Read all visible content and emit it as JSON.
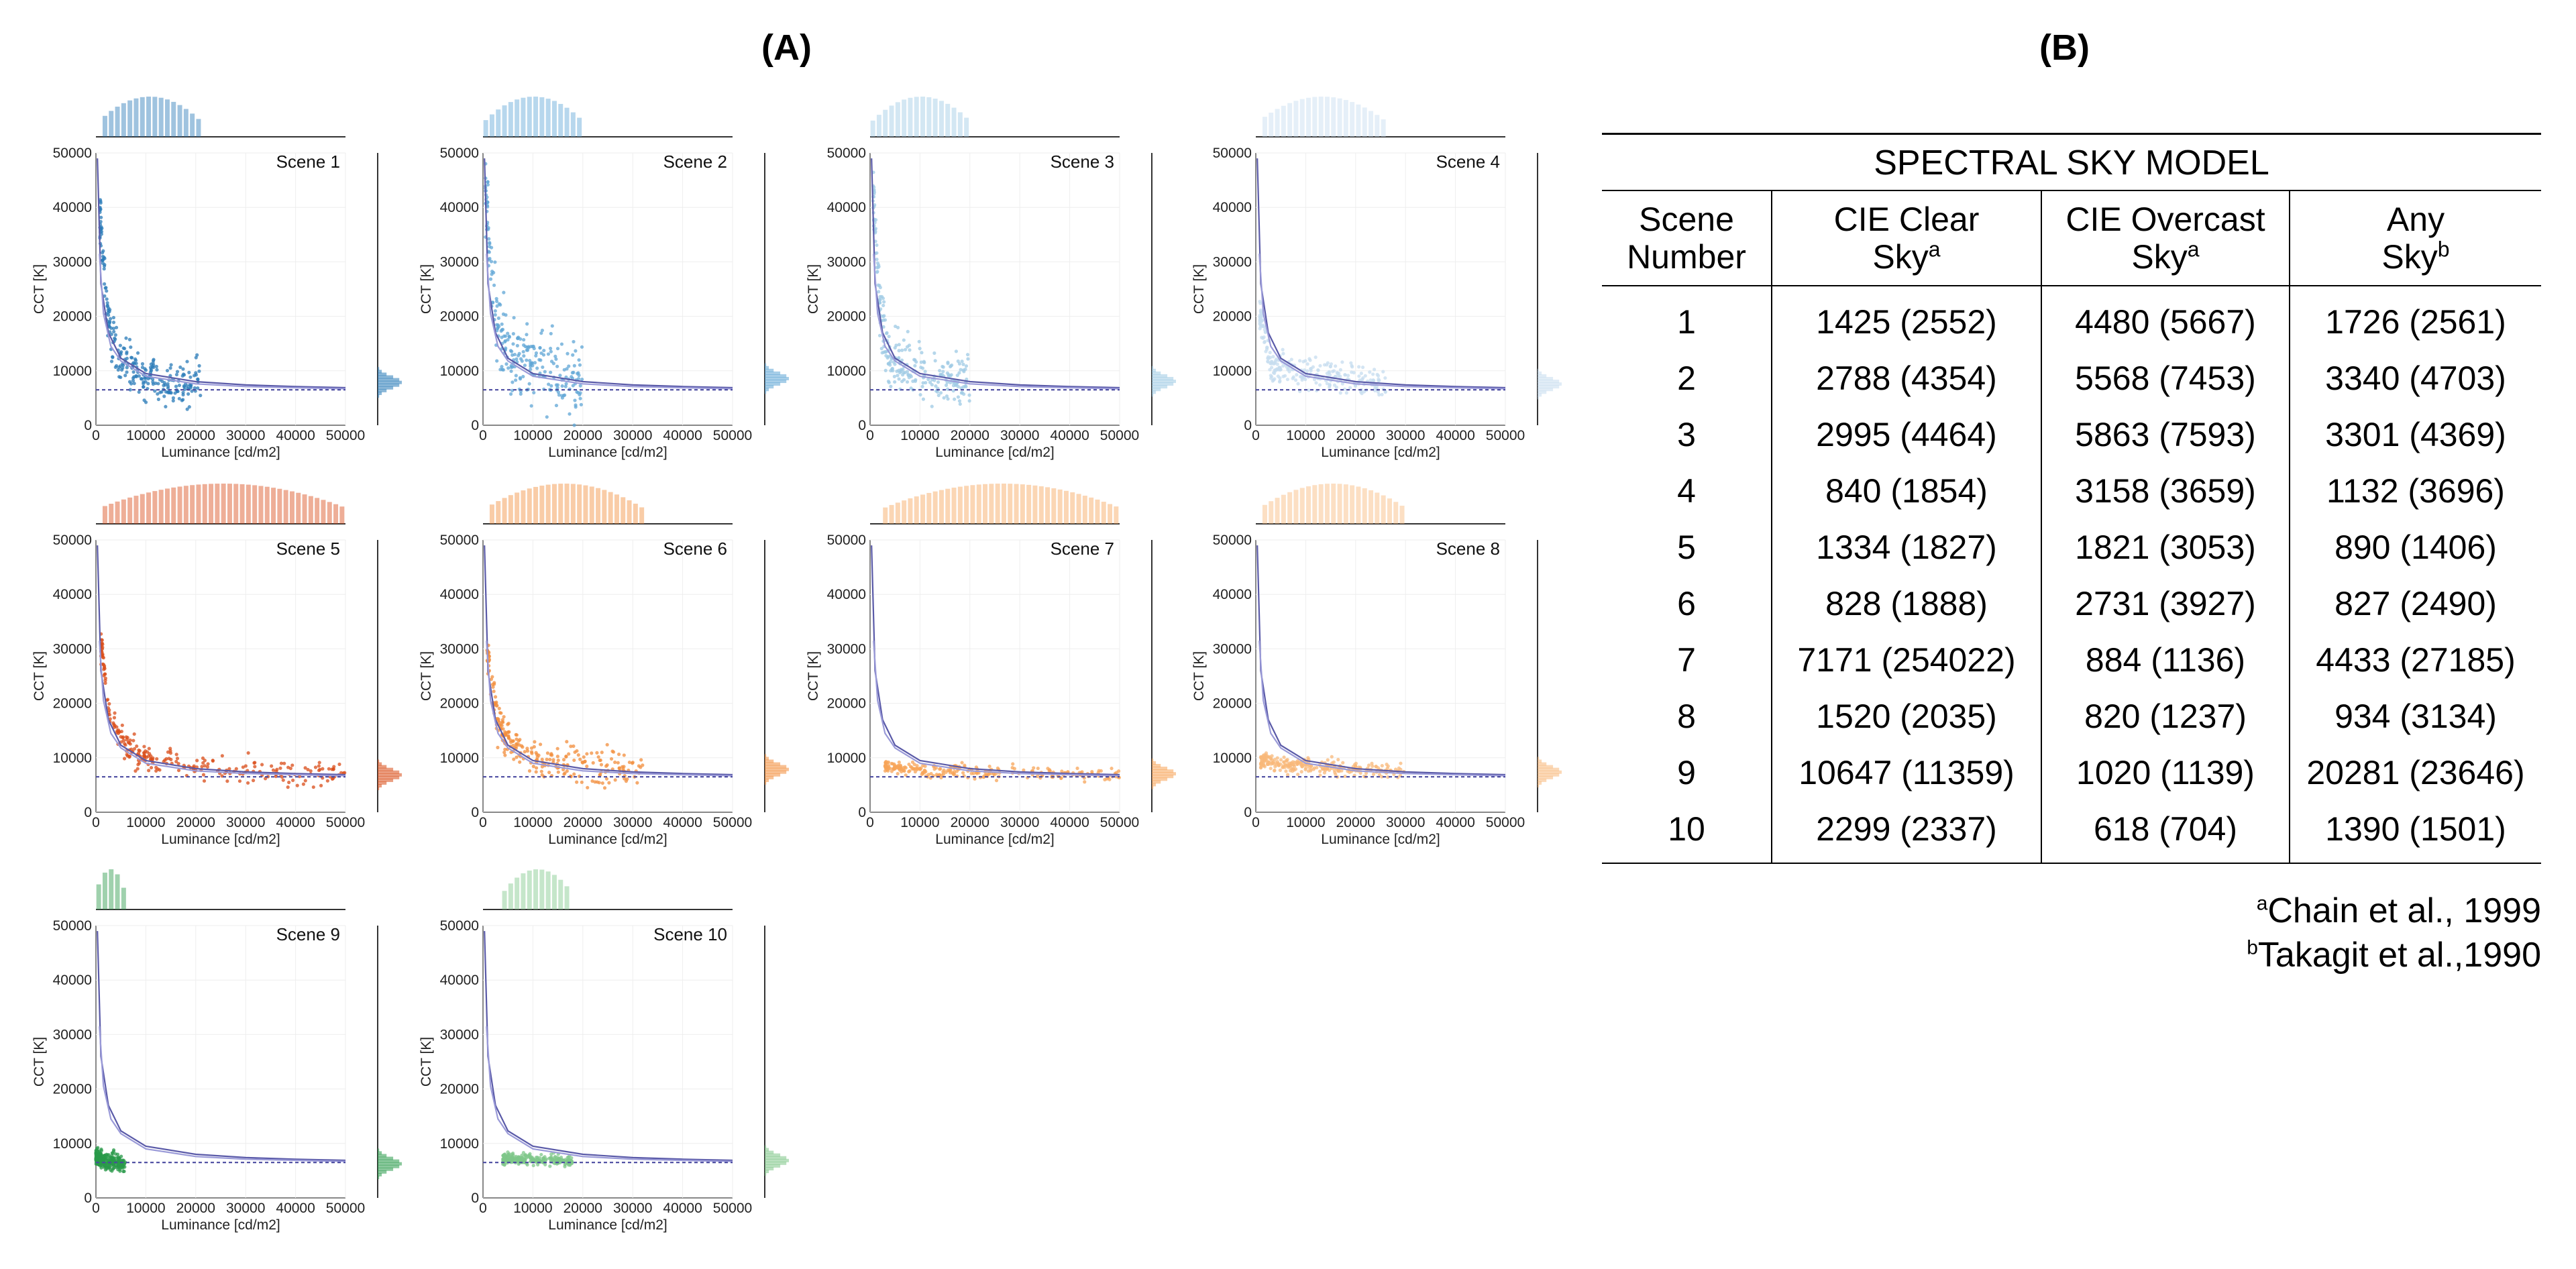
{
  "panel_a_label": "(A)",
  "panel_b_label": "(B)",
  "chart_data": {
    "type": "scatter",
    "xlabel": "Luminance [cd/m2]",
    "ylabel": "CCT [K]",
    "xlim": [
      0,
      50000
    ],
    "ylim": [
      0,
      50000
    ],
    "xticks": [
      0,
      10000,
      20000,
      30000,
      40000,
      50000
    ],
    "yticks": [
      0,
      10000,
      20000,
      30000,
      40000,
      50000
    ],
    "reference_lines": [
      {
        "style": "solid",
        "color": "#5a5aa8",
        "points": [
          [
            300,
            49000
          ],
          [
            1000,
            26000
          ],
          [
            2500,
            17000
          ],
          [
            5000,
            12300
          ],
          [
            10000,
            9500
          ],
          [
            20000,
            8000
          ],
          [
            30000,
            7400
          ],
          [
            40000,
            7100
          ],
          [
            50000,
            6900
          ]
        ]
      },
      {
        "style": "solid",
        "color": "#9a9ad8",
        "points": [
          [
            700,
            31500
          ],
          [
            1500,
            20500
          ],
          [
            3000,
            14500
          ],
          [
            5000,
            11800
          ],
          [
            10000,
            9000
          ],
          [
            20000,
            7600
          ],
          [
            30000,
            7100
          ],
          [
            40000,
            6900
          ],
          [
            50000,
            6700
          ]
        ]
      },
      {
        "style": "dashed",
        "color": "#4a4aa0",
        "points": [
          [
            0,
            6500
          ],
          [
            50000,
            6500
          ]
        ]
      }
    ],
    "scenes": [
      {
        "name": "Scene 1",
        "color": "#2a7bb8",
        "x_range": [
          800,
          21000
        ],
        "cct_center": [
          [
            1000,
            38000
          ],
          [
            2000,
            22000
          ],
          [
            4000,
            13000
          ],
          [
            8000,
            9500
          ],
          [
            14000,
            8300
          ],
          [
            21000,
            7800
          ]
        ],
        "cct_spread": 2200
      },
      {
        "name": "Scene 2",
        "color": "#5fa6d6",
        "x_range": [
          500,
          20000
        ],
        "cct_center": [
          [
            700,
            42000
          ],
          [
            1500,
            28000
          ],
          [
            3000,
            17000
          ],
          [
            6000,
            12000
          ],
          [
            12000,
            10500
          ],
          [
            20000,
            8500
          ]
        ],
        "cct_spread": 3500
      },
      {
        "name": "Scene 3",
        "color": "#9ecae4",
        "x_range": [
          600,
          20000
        ],
        "cct_center": [
          [
            800,
            40000
          ],
          [
            2000,
            20000
          ],
          [
            4000,
            12000
          ],
          [
            10000,
            10000
          ],
          [
            20000,
            8000
          ]
        ],
        "cct_spread": 2600
      },
      {
        "name": "Scene 4",
        "color": "#c6dcef",
        "x_range": [
          800,
          26000
        ],
        "cct_center": [
          [
            1000,
            20000
          ],
          [
            3000,
            11000
          ],
          [
            10000,
            9500
          ],
          [
            18000,
            9000
          ],
          [
            26000,
            7500
          ]
        ],
        "cct_spread": 1500
      },
      {
        "name": "Scene 5",
        "color": "#d94c18",
        "x_range": [
          1000,
          50000
        ],
        "cct_center": [
          [
            1200,
            30000
          ],
          [
            3000,
            16000
          ],
          [
            8000,
            10500
          ],
          [
            20000,
            8200
          ],
          [
            35000,
            7300
          ],
          [
            50000,
            6800
          ]
        ],
        "cct_spread": 1200
      },
      {
        "name": "Scene 6",
        "color": "#f28e3c",
        "x_range": [
          800,
          32000
        ],
        "cct_center": [
          [
            1000,
            28000
          ],
          [
            3000,
            16000
          ],
          [
            8000,
            11000
          ],
          [
            15000,
            9000
          ],
          [
            25000,
            8200
          ],
          [
            32000,
            7800
          ]
        ],
        "cct_spread": 1700
      },
      {
        "name": "Scene 7",
        "color": "#f7a458",
        "x_range": [
          3000,
          50000
        ],
        "cct_center": [
          [
            3000,
            8500
          ],
          [
            10000,
            7700
          ],
          [
            25000,
            7200
          ],
          [
            50000,
            7000
          ]
        ],
        "cct_spread": 600
      },
      {
        "name": "Scene 8",
        "color": "#f8b87a",
        "x_range": [
          1000,
          30000
        ],
        "cct_center": [
          [
            1000,
            9500
          ],
          [
            8000,
            8500
          ],
          [
            18000,
            8200
          ],
          [
            30000,
            7300
          ]
        ],
        "cct_spread": 700
      },
      {
        "name": "Scene 9",
        "color": "#2a9a4a",
        "x_range": [
          0,
          6000
        ],
        "cct_center": [
          [
            200,
            7500
          ],
          [
            2000,
            6900
          ],
          [
            4000,
            6400
          ],
          [
            6000,
            6200
          ]
        ],
        "cct_spread": 800
      },
      {
        "name": "Scene 10",
        "color": "#7fc789",
        "x_range": [
          4000,
          18000
        ],
        "cct_center": [
          [
            4000,
            7200
          ],
          [
            10000,
            7000
          ],
          [
            18000,
            6800
          ]
        ],
        "cct_spread": 500
      }
    ]
  },
  "table": {
    "title": "SPECTRAL SKY MODEL",
    "headers": [
      {
        "line1": "Scene",
        "line2": "Number",
        "sup": ""
      },
      {
        "line1": "CIE Clear",
        "line2": "Sky",
        "sup": "a"
      },
      {
        "line1": "CIE Overcast",
        "line2": "Sky",
        "sup": "a"
      },
      {
        "line1": "Any",
        "line2": "Sky",
        "sup": "b"
      }
    ],
    "rows": [
      [
        "1",
        "1425 (2552)",
        "4480 (5667)",
        "1726 (2561)"
      ],
      [
        "2",
        "2788 (4354)",
        "5568 (7453)",
        "3340 (4703)"
      ],
      [
        "3",
        "2995 (4464)",
        "5863 (7593)",
        "3301 (4369)"
      ],
      [
        "4",
        "840 (1854)",
        "3158 (3659)",
        "1132 (3696)"
      ],
      [
        "5",
        "1334 (1827)",
        "1821 (3053)",
        "890 (1406)"
      ],
      [
        "6",
        "828 (1888)",
        "2731 (3927)",
        "827 (2490)"
      ],
      [
        "7",
        "7171 (254022)",
        "884 (1136)",
        "4433 (27185)"
      ],
      [
        "8",
        "1520 (2035)",
        "820 (1237)",
        "934 (3134)"
      ],
      [
        "9",
        "10647 (11359)",
        "1020 (1139)",
        "20281 (23646)"
      ],
      [
        "10",
        "2299 (2337)",
        "618 (704)",
        "1390 (1501)"
      ]
    ],
    "footnotes": [
      {
        "sup": "a",
        "text": "Chain et al., 1999"
      },
      {
        "sup": "b",
        "text": "Takagit et al.,1990"
      }
    ]
  }
}
